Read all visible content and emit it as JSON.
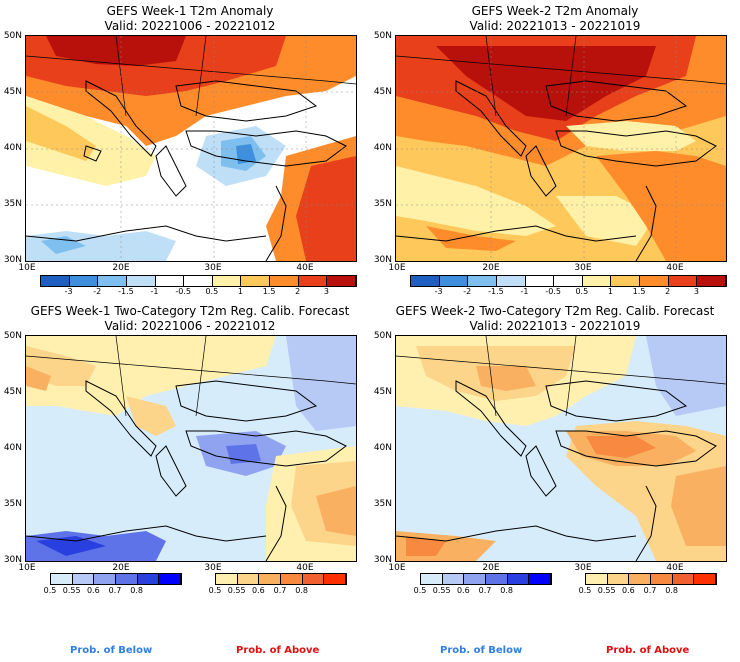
{
  "panels": {
    "tl": {
      "title": "GEFS Week-1 T2m Anomaly",
      "valid": "Valid: 20221006 - 20221012"
    },
    "tr": {
      "title": "GEFS Week-2 T2m Anomaly",
      "valid": "Valid: 20221013 - 20221019"
    },
    "bl": {
      "title": "GEFS Week-1 Two-Category T2m Reg. Calib. Forecast",
      "valid": "Valid: 20221006 - 20221012"
    },
    "br": {
      "title": "GEFS Week-2 Two-Category T2m Reg. Calib. Forecast",
      "valid": "Valid: 20221013 - 20221019"
    }
  },
  "axes": {
    "lat_labels": [
      "50N",
      "45N",
      "40N",
      "35N",
      "30N"
    ],
    "lon_labels": [
      "10E",
      "20E",
      "30E",
      "40E"
    ]
  },
  "anomaly_scale": {
    "ticks": [
      "-3",
      "-2",
      "-1.5",
      "-1",
      "-0.5",
      "0.5",
      "1",
      "1.5",
      "2",
      "3"
    ],
    "colors": [
      "#1f5fbf",
      "#3f8fdf",
      "#7fbfef",
      "#bfdff7",
      "#ffffff",
      "#ffffff",
      "#fff2a8",
      "#ffc85a",
      "#ff8c2a",
      "#e8401a",
      "#b8100a"
    ]
  },
  "prob_scale": {
    "below_ticks": [
      "0.5",
      "0.55",
      "0.6",
      "0.7",
      "0.8"
    ],
    "above_ticks": [
      "0.5",
      "0.55",
      "0.6",
      "0.7",
      "0.8"
    ],
    "below_colors": [
      "#d7ecfb",
      "#b7c9f5",
      "#8fa3f0",
      "#5f73e8",
      "#2a3fe0",
      "#0000ff"
    ],
    "above_colors": [
      "#fff0b0",
      "#fcd48a",
      "#f9b060",
      "#f78a40",
      "#f06030",
      "#ff3000"
    ]
  },
  "legend": {
    "below_label": "Prob. of Below",
    "above_label": "Prob. of Above",
    "below_color": "#2f7fdf",
    "above_color": "#e01010"
  }
}
